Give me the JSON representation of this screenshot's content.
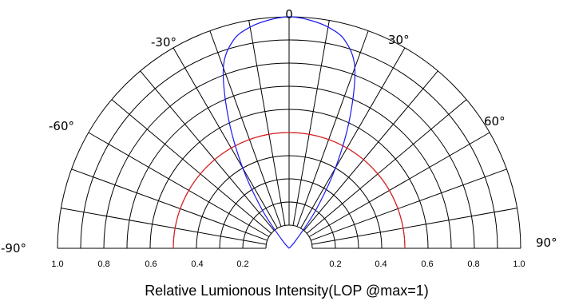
{
  "chart_data": {
    "type": "polar-half",
    "angle_labels": [
      "-90°",
      "-60°",
      "-30°",
      "0",
      "30°",
      "60°",
      "90°"
    ],
    "angle_range": [
      -90,
      90
    ],
    "spoke_step_deg": 10,
    "radial_range": [
      0,
      1
    ],
    "radial_grid_step": 0.1,
    "left_tick_labels": [
      "1.0",
      "0.8",
      "0.6",
      "0.4",
      "0.2"
    ],
    "right_tick_labels": [
      "0.2",
      "0.4",
      "0.6",
      "0.8",
      "1.0"
    ],
    "xlabel": "Relative Lumionous Intensity(LOP @max=1)",
    "half_intensity_circle": 0.5,
    "series": [
      {
        "color": "#1a1aee",
        "points": [
          {
            "angle": -45,
            "r": 0.0
          },
          {
            "angle": -40,
            "r": 0.05
          },
          {
            "angle": -35,
            "r": 0.2
          },
          {
            "angle": -30,
            "r": 0.4
          },
          {
            "angle": -25,
            "r": 0.62
          },
          {
            "angle": -20,
            "r": 0.83
          },
          {
            "angle": -15,
            "r": 0.93
          },
          {
            "angle": -10,
            "r": 0.97
          },
          {
            "angle": -5,
            "r": 0.99
          },
          {
            "angle": 0,
            "r": 1.0
          },
          {
            "angle": 5,
            "r": 0.99
          },
          {
            "angle": 10,
            "r": 0.97
          },
          {
            "angle": 15,
            "r": 0.93
          },
          {
            "angle": 20,
            "r": 0.83
          },
          {
            "angle": 25,
            "r": 0.62
          },
          {
            "angle": 30,
            "r": 0.4
          },
          {
            "angle": 35,
            "r": 0.2
          },
          {
            "angle": 40,
            "r": 0.05
          },
          {
            "angle": 45,
            "r": 0.0
          }
        ]
      }
    ],
    "colors": {
      "grid": "#000000",
      "half_circle": "#e02020",
      "curve": "#1a1aee"
    }
  }
}
